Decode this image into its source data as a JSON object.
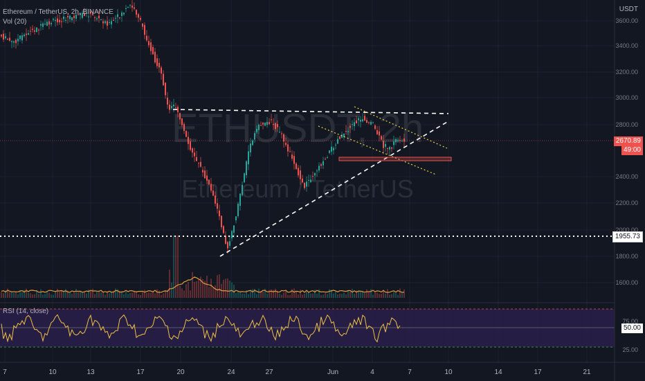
{
  "header": {
    "symbol_line": "Ethereum / TetherUS, 2h, BINANCE",
    "vol_label": "Vol (20)",
    "currency": "USDT"
  },
  "watermark": {
    "ticker": "ETHUSDT, 2h",
    "name": "Ethereum / TetherUS"
  },
  "price_axis": {
    "ticks": [
      "3600.00",
      "3400.00",
      "3200.00",
      "3000.00",
      "2800.00",
      "2400.00",
      "2200.00",
      "2000.00",
      "1800.00",
      "1600.00"
    ]
  },
  "badges": {
    "last_price": "2670.89",
    "countdown": "49:00",
    "level_price": "1955.73",
    "rsi_value": "50.00"
  },
  "rsi": {
    "label": "RSI (14, close)",
    "ticks": [
      "75.00",
      "25.00"
    ]
  },
  "time_axis": {
    "labels": [
      "7",
      "10",
      "13",
      "17",
      "20",
      "24",
      "27",
      "Jun",
      "4",
      "7",
      "10",
      "14",
      "17",
      "21"
    ]
  },
  "colors": {
    "background": "#131722",
    "up": "#26a69a",
    "down": "#ef5350",
    "rsi_line": "#f0c244",
    "rsi_band": "#2a1f4a",
    "volume_ma": "#e39b3b"
  },
  "chart_data": {
    "type": "candlestick",
    "price_ylim": [
      1500,
      3700
    ],
    "rsi_ylim": [
      0,
      100
    ],
    "level_line": 1955.73,
    "last_price": 2670.89
  }
}
